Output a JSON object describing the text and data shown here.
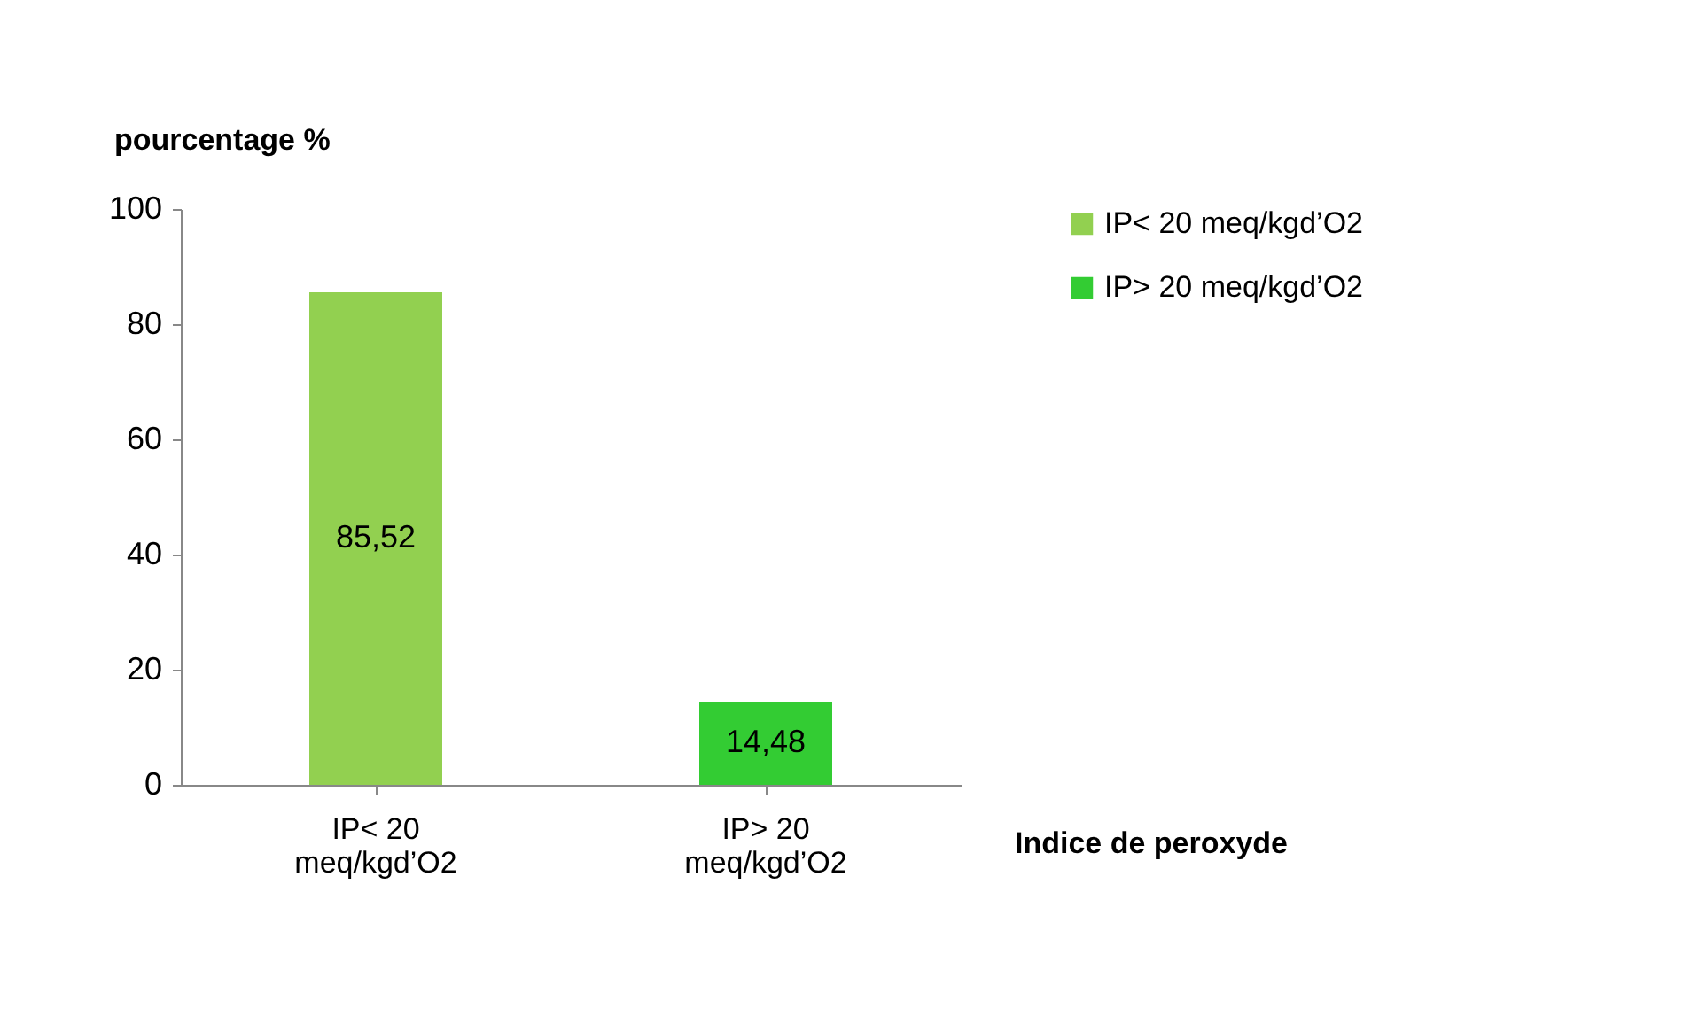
{
  "chart_data": {
    "type": "bar",
    "categories": [
      "IP< 20 meq/kgd’O2",
      "IP> 20 meq/kgd’O2"
    ],
    "series": [
      {
        "name": "IP< 20 meq/kgd’O2",
        "color": "#92d050",
        "values": [
          85.52,
          null
        ],
        "value_labels": [
          "85,52",
          null
        ]
      },
      {
        "name": "IP> 20 meq/kgd’O2",
        "color": "#33cc33",
        "values": [
          null,
          14.48
        ],
        "value_labels": [
          null,
          "14,48"
        ]
      }
    ],
    "ylabel": "pourcentage %",
    "xlabel": "Indice de peroxyde",
    "ylim": [
      0,
      100
    ],
    "yticks": [
      0,
      20,
      40,
      60,
      80,
      100
    ],
    "grid": false,
    "legend": "right"
  }
}
